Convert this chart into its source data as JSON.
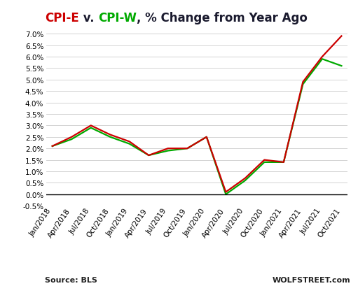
{
  "title_parts": [
    {
      "text": "CPI-E",
      "color": "#cc0000"
    },
    {
      "text": " v. ",
      "color": "#1a1a2e"
    },
    {
      "text": "CPI-W",
      "color": "#00aa00"
    },
    {
      "text": ", % Change from Year Ago",
      "color": "#1a1a2e"
    }
  ],
  "x_labels": [
    "Jan/2018",
    "Apr/2018",
    "Jul/2018",
    "Oct/2018",
    "Jan/2019",
    "Apr/2019",
    "Jul/2019",
    "Oct/2019",
    "Jan/2020",
    "Apr/2020",
    "Jul/2020",
    "Oct/2020",
    "Jan/2021",
    "Apr/2021",
    "Jul/2021",
    "Oct/2021"
  ],
  "cpi_e": [
    2.1,
    2.5,
    3.0,
    2.6,
    2.3,
    1.7,
    2.0,
    2.0,
    2.5,
    0.1,
    0.7,
    1.5,
    1.4,
    4.9,
    6.0,
    6.9
  ],
  "cpi_w": [
    2.1,
    2.4,
    2.9,
    2.5,
    2.2,
    1.7,
    1.9,
    2.0,
    2.5,
    0.0,
    0.6,
    1.4,
    1.4,
    4.8,
    5.9,
    5.6
  ],
  "cpi_e_color": "#cc0000",
  "cpi_w_color": "#00aa00",
  "background_color": "#ffffff",
  "grid_color": "#cccccc",
  "ylim": [
    -0.5,
    7.0
  ],
  "yticks": [
    -0.5,
    0.0,
    0.5,
    1.0,
    1.5,
    2.0,
    2.5,
    3.0,
    3.5,
    4.0,
    4.5,
    5.0,
    5.5,
    6.0,
    6.5,
    7.0
  ],
  "source_text": "Source: BLS",
  "watermark_text": "WOLFSTREET.com",
  "title_fontsize": 12,
  "axis_fontsize": 7.5,
  "source_fontsize": 8,
  "line_width": 1.6
}
